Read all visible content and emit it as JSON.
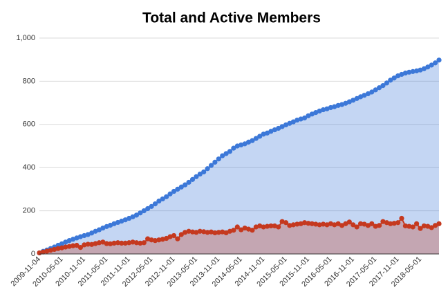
{
  "chart_data": {
    "type": "area",
    "title": "Total and Active Members",
    "categories": [
      "2009-11-04",
      null,
      null,
      null,
      null,
      null,
      "2010-05-01",
      null,
      null,
      null,
      null,
      null,
      "2010-11-01",
      null,
      null,
      null,
      null,
      null,
      "2011-05-01",
      null,
      null,
      null,
      null,
      null,
      "2011-11-01",
      null,
      null,
      null,
      null,
      null,
      "2012-05-01",
      null,
      null,
      null,
      null,
      null,
      "2012-11-01",
      null,
      null,
      null,
      null,
      null,
      "2013-05-01",
      null,
      null,
      null,
      null,
      null,
      "2013-11-01",
      null,
      null,
      null,
      null,
      null,
      "2014-05-01",
      null,
      null,
      null,
      null,
      null,
      "2014-11-01",
      null,
      null,
      null,
      null,
      null,
      "2015-05-01",
      null,
      null,
      null,
      null,
      null,
      "2015-11-01",
      null,
      null,
      null,
      null,
      null,
      "2016-05-01",
      null,
      null,
      null,
      null,
      null,
      "2016-11-01",
      null,
      null,
      null,
      null,
      null,
      "2017-05-01",
      null,
      null,
      null,
      null,
      null,
      "2017-11-01",
      null,
      null,
      null,
      null,
      null,
      "2018-05-01",
      null,
      null,
      null,
      null,
      null
    ],
    "series": [
      {
        "color": "#3c78d8",
        "values": [
          5,
          12,
          18,
          25,
          32,
          40,
          47,
          55,
          62,
          68,
          74,
          80,
          85,
          90,
          97,
          105,
          112,
          120,
          127,
          133,
          140,
          146,
          152,
          158,
          165,
          172,
          180,
          190,
          200,
          210,
          220,
          232,
          245,
          255,
          265,
          278,
          290,
          300,
          310,
          320,
          332,
          345,
          358,
          370,
          380,
          395,
          410,
          425,
          440,
          455,
          465,
          475,
          490,
          500,
          505,
          510,
          518,
          525,
          535,
          545,
          555,
          560,
          568,
          575,
          582,
          590,
          598,
          605,
          612,
          620,
          625,
          630,
          640,
          648,
          655,
          662,
          668,
          672,
          678,
          682,
          688,
          692,
          698,
          705,
          712,
          720,
          728,
          735,
          742,
          750,
          760,
          770,
          780,
          792,
          805,
          815,
          825,
          832,
          838,
          842,
          845,
          848,
          852,
          858,
          866,
          875,
          885,
          898
        ]
      },
      {
        "color": "#c5391f",
        "values": [
          5,
          9,
          13,
          17,
          21,
          25,
          28,
          32,
          35,
          38,
          40,
          30,
          42,
          45,
          44,
          48,
          52,
          55,
          48,
          47,
          50,
          52,
          50,
          50,
          52,
          55,
          52,
          50,
          52,
          70,
          65,
          62,
          65,
          68,
          72,
          80,
          85,
          70,
          90,
          100,
          105,
          102,
          100,
          105,
          103,
          100,
          102,
          98,
          100,
          102,
          98,
          105,
          110,
          125,
          112,
          120,
          115,
          110,
          125,
          130,
          125,
          128,
          130,
          130,
          125,
          150,
          145,
          132,
          135,
          138,
          140,
          145,
          142,
          140,
          138,
          135,
          138,
          135,
          140,
          135,
          140,
          132,
          140,
          148,
          135,
          125,
          140,
          138,
          132,
          140,
          128,
          132,
          150,
          145,
          140,
          142,
          145,
          165,
          130,
          128,
          125,
          140,
          118,
          130,
          128,
          122,
          132,
          140
        ]
      }
    ],
    "ylim": [
      0,
      1000
    ],
    "yticks": [
      0,
      200,
      400,
      600,
      800,
      {
        "value": 1000,
        "label": "1,000"
      }
    ],
    "grid": true
  }
}
